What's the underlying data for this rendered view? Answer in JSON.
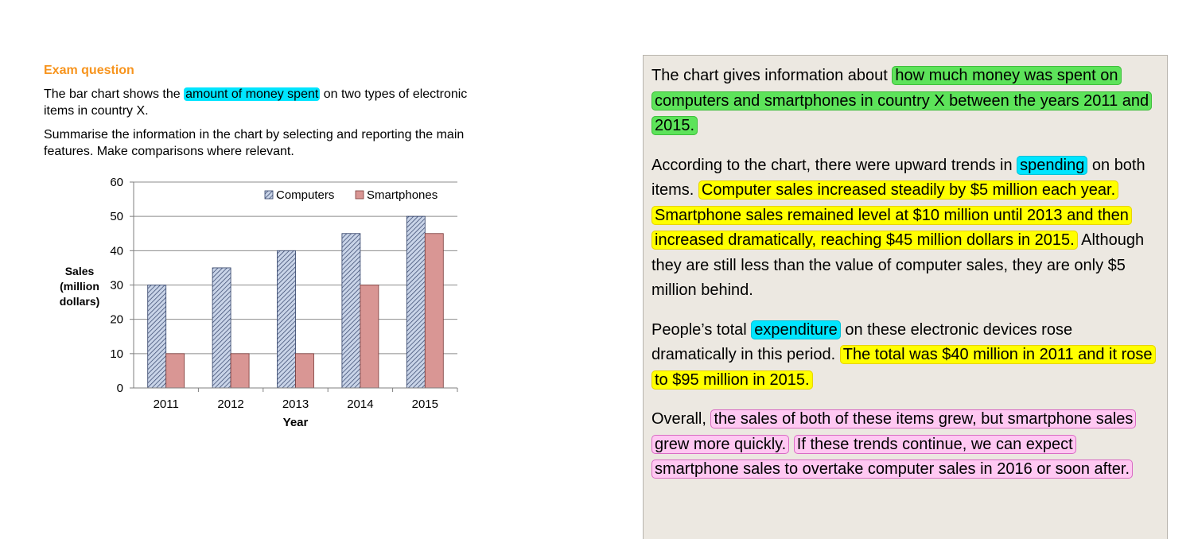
{
  "question": {
    "heading": "Exam question",
    "p1_before": "The bar chart shows the ",
    "p1_highlight": "amount of money spent",
    "p1_after": " on two types of electronic items in country X.",
    "p2": "Summarise the information in the chart by selecting and reporting the main features. Make comparisons where relevant."
  },
  "chart_data": {
    "type": "bar",
    "categories": [
      "2011",
      "2012",
      "2013",
      "2014",
      "2015"
    ],
    "series": [
      {
        "name": "Computers",
        "values": [
          30,
          35,
          40,
          45,
          50
        ]
      },
      {
        "name": "Smartphones",
        "values": [
          10,
          10,
          10,
          30,
          45
        ]
      }
    ],
    "xlabel": "Year",
    "ylabel": "Sales (million dollars)",
    "ylabel_lines": [
      "Sales",
      "(million",
      "dollars)"
    ],
    "ylim": [
      0,
      60
    ],
    "yticks": [
      "0",
      "10",
      "20",
      "30",
      "40",
      "50",
      "60"
    ],
    "grid": true,
    "legend_position": "top-right",
    "colors": {
      "computers_fill": "#c9d4e8",
      "computers_hatch": "#2f3f66",
      "smartphones_fill": "#d99694",
      "smartphones_edge": "#7a3a38"
    }
  },
  "answer": {
    "p1": [
      {
        "text": "The chart gives information about ",
        "hl": ""
      },
      {
        "text": "how much money was spent on computers and smartphones in country X between the years 2011 and 2015.",
        "hl": "green"
      }
    ],
    "p2": [
      {
        "text": "According to the chart, there were upward trends in ",
        "hl": ""
      },
      {
        "text": "spending",
        "hl": "cyan"
      },
      {
        "text": " on both items. ",
        "hl": ""
      },
      {
        "text": "Computer sales increased steadily by $5 million each year.",
        "hl": "yellow"
      },
      {
        "text": " ",
        "hl": ""
      },
      {
        "text": "Smartphone sales remained level at $10 million until 2013 and then increased dramatically, reaching $45 million dollars in 2015.",
        "hl": "yellow"
      },
      {
        "text": " Although they are still less than the value of computer sales, they are only $5 million behind.",
        "hl": ""
      }
    ],
    "p3": [
      {
        "text": "People’s total ",
        "hl": ""
      },
      {
        "text": "expenditure",
        "hl": "cyan"
      },
      {
        "text": " on these electronic devices rose dramatically in this period. ",
        "hl": ""
      },
      {
        "text": "The total was $40 million in 2011 and it rose to $95 million in 2015.",
        "hl": "yellow"
      }
    ],
    "p4": [
      {
        "text": "Overall, ",
        "hl": ""
      },
      {
        "text": "the sales of both of these items grew, but smartphone sales grew more quickly.",
        "hl": "pink"
      },
      {
        "text": " ",
        "hl": ""
      },
      {
        "text": "If these trends continue, we can expect smartphone sales to overtake computer sales in 2016 or soon after.",
        "hl": "pink"
      }
    ]
  }
}
